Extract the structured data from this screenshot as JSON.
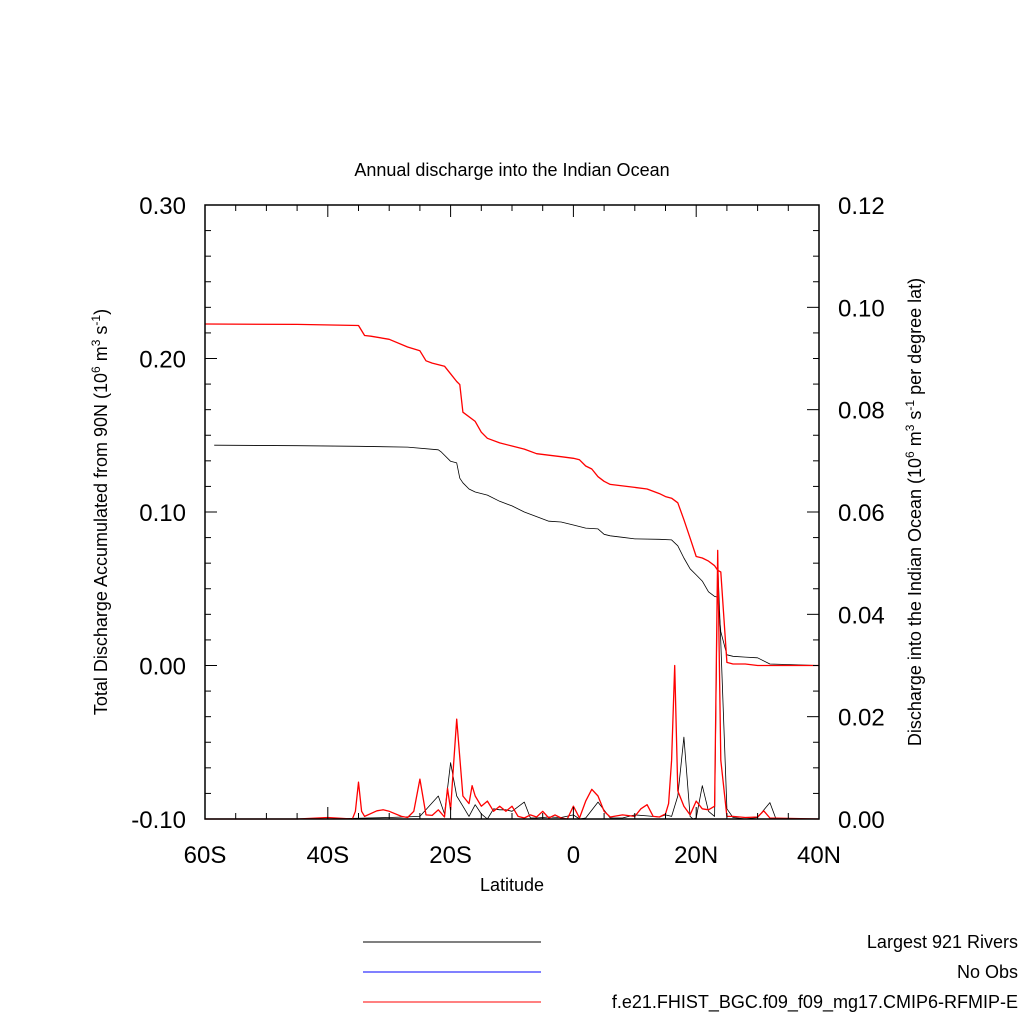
{
  "chart_data": {
    "type": "line",
    "title": "Annual discharge into the Indian Ocean",
    "xlabel": "Latitude",
    "ylabel_left": "Total Discharge Accumulated from 90N (10<sup>6</sup> m<sup>3</sup> s<sup>-1</sup>)",
    "ylabel_right": "Discharge into the Indian Ocean (10<sup>6</sup> m<sup>3</sup> s<sup>-1</sup> per degree lat)",
    "xlim": [
      -60,
      40
    ],
    "ylim_left": [
      -0.1,
      0.3
    ],
    "ylim_right": [
      0.0,
      0.12
    ],
    "x_ticks": [
      {
        "value": -60,
        "label": "60S"
      },
      {
        "value": -40,
        "label": "40S"
      },
      {
        "value": -20,
        "label": "20S"
      },
      {
        "value": 0,
        "label": "0"
      },
      {
        "value": 20,
        "label": "20N"
      },
      {
        "value": 40,
        "label": "40N"
      }
    ],
    "y_left_ticks": [
      {
        "value": -0.1,
        "label": "-0.10"
      },
      {
        "value": 0.0,
        "label": "0.00"
      },
      {
        "value": 0.1,
        "label": "0.10"
      },
      {
        "value": 0.2,
        "label": "0.20"
      },
      {
        "value": 0.3,
        "label": "0.30"
      }
    ],
    "y_right_ticks": [
      {
        "value": 0.0,
        "label": "0.00"
      },
      {
        "value": 0.02,
        "label": "0.02"
      },
      {
        "value": 0.04,
        "label": "0.04"
      },
      {
        "value": 0.06,
        "label": "0.06"
      },
      {
        "value": 0.08,
        "label": "0.08"
      },
      {
        "value": 0.1,
        "label": "0.10"
      },
      {
        "value": 0.12,
        "label": "0.12"
      }
    ],
    "legend_position": "bottom-right",
    "legend": [
      {
        "label": "Largest 921 Rivers",
        "color": "#000000"
      },
      {
        "label": "No Obs",
        "color": "#0000ff"
      },
      {
        "label": "f.e21.FHIST_BGC.f09_f09_mg17.CMIP6-RFMIP-E",
        "color": "#ff0000"
      }
    ],
    "series": [
      {
        "name": "Largest 921 Rivers",
        "axis": "left",
        "color": "#000000",
        "x": [
          -58.5,
          -45,
          -35,
          -27,
          -22,
          -21.5,
          -20,
          -19,
          -18.5,
          -18,
          -17,
          -16,
          -14,
          -12,
          -10,
          -8,
          -6,
          -4,
          -2,
          0,
          2,
          4,
          5,
          6,
          8,
          10,
          14,
          16,
          17,
          18,
          19,
          20,
          21,
          22,
          23,
          23.5,
          24,
          25,
          26,
          28,
          30,
          32,
          40
        ],
        "y": [
          0.1435,
          0.1432,
          0.1428,
          0.1423,
          0.1405,
          0.139,
          0.133,
          0.132,
          0.122,
          0.119,
          0.115,
          0.113,
          0.111,
          0.107,
          0.104,
          0.1,
          0.097,
          0.094,
          0.0935,
          0.0915,
          0.0895,
          0.089,
          0.0855,
          0.0845,
          0.0835,
          0.0825,
          0.0822,
          0.0818,
          0.078,
          0.07,
          0.063,
          0.059,
          0.055,
          0.048,
          0.045,
          0.0445,
          0.022,
          0.007,
          0.006,
          0.0055,
          0.005,
          0.001,
          0.0
        ]
      },
      {
        "name": "f.e21.FHIST_BGC.f09_f09_mg17.CMIP6-RFMIP-E",
        "axis": "left",
        "color": "#ff0000",
        "x": [
          -60,
          -45,
          -35,
          -34,
          -33,
          -30,
          -27,
          -25,
          -24,
          -23,
          -21,
          -20,
          -19,
          -18.5,
          -18,
          -16,
          -15,
          -14,
          -12,
          -10,
          -8,
          -6,
          -4,
          -2,
          0,
          1,
          2,
          3,
          4,
          5,
          6,
          8,
          10,
          12,
          14,
          15,
          16,
          17,
          18,
          19,
          20,
          21,
          22,
          23,
          23.5,
          24,
          25,
          26,
          28,
          30,
          32,
          40
        ],
        "y": [
          0.2225,
          0.2222,
          0.2215,
          0.215,
          0.2145,
          0.2125,
          0.2075,
          0.205,
          0.1985,
          0.197,
          0.195,
          0.19,
          0.185,
          0.183,
          0.165,
          0.159,
          0.152,
          0.148,
          0.145,
          0.143,
          0.141,
          0.138,
          0.137,
          0.136,
          0.135,
          0.134,
          0.13,
          0.128,
          0.123,
          0.12,
          0.118,
          0.117,
          0.116,
          0.115,
          0.112,
          0.11,
          0.109,
          0.106,
          0.095,
          0.083,
          0.071,
          0.07,
          0.068,
          0.065,
          0.062,
          0.061,
          0.002,
          0.001,
          0.001,
          0.0,
          0.0,
          0.0
        ]
      },
      {
        "name": "Largest 921 Rivers",
        "axis": "right",
        "color": "#000000",
        "x": [
          -60,
          -40,
          -30,
          -25,
          -22,
          -21,
          -20,
          -19,
          -18,
          -17,
          -16,
          -15,
          -14,
          -13,
          -12,
          -11,
          -10,
          -8,
          -7,
          -6,
          -4,
          -2,
          0,
          1,
          2,
          4,
          6,
          8,
          10,
          12,
          14,
          15,
          16,
          17,
          18,
          19,
          19.5,
          20,
          21,
          22,
          23,
          23.5,
          24,
          25,
          26,
          28,
          30,
          32,
          33
        ],
        "y": [
          0.0,
          0.0,
          0.0003,
          0.0005,
          0.0045,
          0.001,
          0.011,
          0.0045,
          0.0025,
          0.0005,
          0.0028,
          0.001,
          0.0,
          0.002,
          0.0018,
          0.0018,
          0.0015,
          0.0033,
          0.0002,
          0.0002,
          0.0004,
          0.0003,
          0.0008,
          0.0,
          0.0002,
          0.0033,
          0.0002,
          0.0002,
          0.0008,
          0.0006,
          0.0004,
          0.0008,
          0.0005,
          0.0045,
          0.016,
          0.0005,
          0.0,
          0.0002,
          0.0065,
          0.0015,
          0.0005,
          0.05,
          0.0345,
          0.002,
          0.0003,
          0.0,
          0.0003,
          0.0032,
          0.0
        ]
      },
      {
        "name": "f.e21.FHIST_BGC.f09_f09_mg17.CMIP6-RFMIP-E",
        "axis": "right",
        "color": "#ff0000",
        "x": [
          -60,
          -45,
          -40,
          -36,
          -35.5,
          -35,
          -34.5,
          -34,
          -32,
          -31,
          -30,
          -28,
          -27,
          -26,
          -25,
          -24,
          -23,
          -22,
          -21,
          -20.5,
          -20,
          -19.5,
          -19,
          -18,
          -17,
          -16.5,
          -16,
          -15,
          -14,
          -13,
          -12,
          -11,
          -10,
          -9,
          -8,
          -7,
          -6,
          -5,
          -4,
          -3,
          -2,
          -1,
          0,
          1,
          2,
          3,
          4,
          5,
          6,
          8,
          10,
          11,
          12,
          13,
          14,
          15,
          15.5,
          16,
          16.5,
          17,
          18,
          19,
          20,
          21,
          22,
          23,
          23.5,
          24,
          25,
          26,
          28,
          30,
          31,
          32,
          40
        ],
        "y": [
          0.0,
          0.0,
          0.0003,
          0.0,
          0.0015,
          0.0072,
          0.0015,
          0.0005,
          0.0016,
          0.0018,
          0.0015,
          0.0005,
          0.0003,
          0.0015,
          0.0078,
          0.0008,
          0.0007,
          0.0018,
          0.0004,
          0.006,
          0.0018,
          0.011,
          0.0195,
          0.0045,
          0.003,
          0.0065,
          0.0045,
          0.0025,
          0.0035,
          0.0015,
          0.0025,
          0.0015,
          0.0025,
          0.0005,
          0.0002,
          0.0008,
          0.0004,
          0.0015,
          0.0002,
          0.0008,
          0.0002,
          0.0,
          0.0025,
          0.0002,
          0.0035,
          0.0058,
          0.0045,
          0.0015,
          0.0004,
          0.0008,
          0.0005,
          0.002,
          0.0028,
          0.0005,
          0.0004,
          0.001,
          0.003,
          0.0115,
          0.03,
          0.0055,
          0.0025,
          0.0008,
          0.0035,
          0.002,
          0.0018,
          0.0025,
          0.0525,
          0.0115,
          0.0005,
          0.0005,
          0.0003,
          0.0004,
          0.0016,
          0.0002,
          0.0
        ]
      }
    ]
  }
}
